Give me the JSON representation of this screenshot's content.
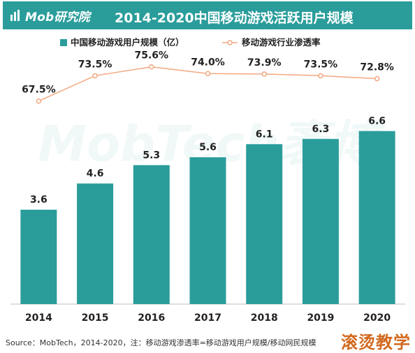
{
  "header": {
    "logo_text": "Mob研究院",
    "title": "2014-2020中国移动游戏活跃用户规模"
  },
  "colors": {
    "header_bg": "#2a9d9b",
    "bar": "#2a9d9b",
    "line": "#f2a880",
    "watermark_bottom_right": "#d2691e"
  },
  "chart_data": {
    "type": "bar",
    "title": "2014-2020中国移动游戏活跃用户规模",
    "categories": [
      "2014",
      "2015",
      "2016",
      "2017",
      "2018",
      "2019",
      "2020"
    ],
    "series": [
      {
        "name": "中国移动游戏用户规模（亿）",
        "type": "bar",
        "values": [
          3.6,
          4.6,
          5.3,
          5.6,
          6.1,
          6.3,
          6.6
        ],
        "labels": [
          "3.6",
          "4.6",
          "5.3",
          "5.6",
          "6.1",
          "6.3",
          "6.6"
        ]
      },
      {
        "name": "移动游戏行业渗透率",
        "type": "line",
        "values": [
          67.5,
          73.5,
          75.6,
          74.0,
          73.9,
          73.5,
          72.8
        ],
        "labels": [
          "67.5%",
          "73.5%",
          "75.6%",
          "74.0%",
          "73.9%",
          "73.5%",
          "72.8%"
        ]
      }
    ],
    "legend_position": "top",
    "grid": false,
    "watermark": "MobTech袤博"
  },
  "footer": {
    "source": "Source：MobTech，2014-2020，注：移动游戏渗透率=移动游戏用户规模/移动网民规模"
  },
  "corner_watermark": "滚烫教学"
}
